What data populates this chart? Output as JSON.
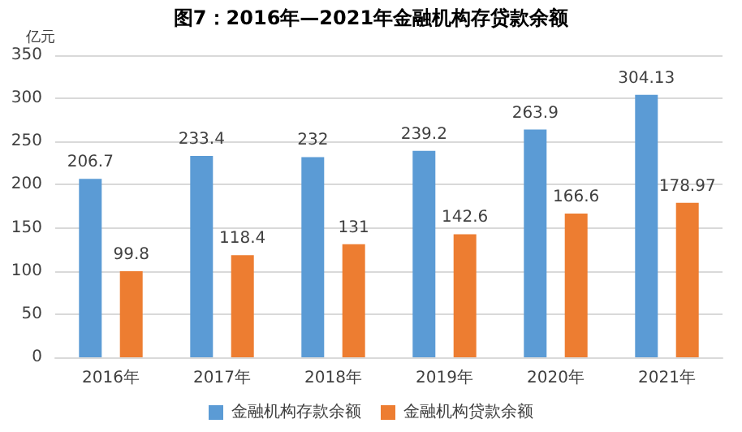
{
  "chart_data": {
    "type": "bar",
    "title": "图7：2016年—2021年金融机构存贷款余额",
    "ylabel": "亿元",
    "categories": [
      "2016年",
      "2017年",
      "2018年",
      "2019年",
      "2020年",
      "2021年"
    ],
    "series": [
      {
        "name": "金融机构存款余额",
        "color": "#5b9bd5",
        "values": [
          206.7,
          233.4,
          232,
          239.2,
          263.9,
          304.13
        ]
      },
      {
        "name": "金融机构贷款余额",
        "color": "#ed7d31",
        "values": [
          99.8,
          118.4,
          131,
          142.6,
          166.6,
          178.97
        ]
      }
    ],
    "ylim": [
      0,
      350
    ],
    "yticks": [
      0,
      50,
      100,
      150,
      200,
      250,
      300,
      350
    ],
    "grid": "y",
    "legend": "bottom",
    "data_labels": true
  }
}
